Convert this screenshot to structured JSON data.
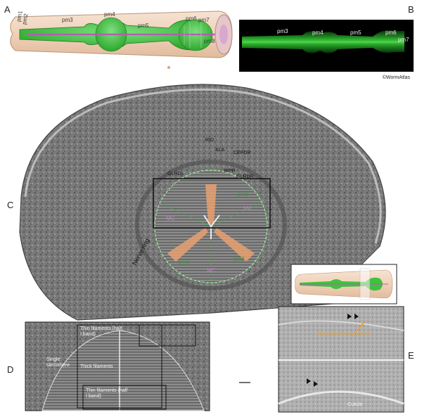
{
  "panels": {
    "a": "A",
    "b": "B",
    "c": "C",
    "d": "D",
    "e": "E"
  },
  "panel_a": {
    "labels": {
      "pm1": "pm1",
      "pm2": "pm2",
      "pm3": "pm3",
      "pm4": "pm4",
      "pm5": "pm5",
      "pm6": "pm6",
      "pm7": "pm7",
      "pm8": "pm8"
    }
  },
  "panel_b": {
    "labels": {
      "pm3": "pm3",
      "pm4": "pm4",
      "pm5": "pm5",
      "pm6": "pm6",
      "pm7": "pm7"
    },
    "credit": "©WormAtlas"
  },
  "panel_c": {
    "labels": {
      "rid": "RID",
      "ala": "ALA",
      "cepdr": "CEPDR",
      "glrdl": "GLRDL",
      "ripr": "RIPR",
      "glrdr": "GLRDR",
      "pm3_top": "pm3",
      "pm3_left": "pm3",
      "pm3_right": "pm3",
      "mc_left": "MC",
      "mc_right": "MC",
      "mc_bottom": "MC",
      "nerve_ring": "Nerve ring"
    }
  },
  "panel_d": {
    "labels": {
      "thin_filaments": "Thin filaments (half I band)",
      "thick_filaments": "Thick filaments",
      "single_sarcomere": "Single sarcomere",
      "thin_filaments_h": "Thin filaments (half I band)"
    }
  },
  "panel_e": {
    "labels": {
      "basal_lamina": "Pharyngeal basal lamina",
      "cuticle": "Cuticle"
    }
  },
  "colors": {
    "pharynx_green": "#3fc23f",
    "body_tan": "#f2d7c0",
    "lumen_purple": "#b060b0",
    "mc_purple": "#c080c0",
    "label_green": "#3a9a3a",
    "basal_orange": "#e8a030"
  }
}
